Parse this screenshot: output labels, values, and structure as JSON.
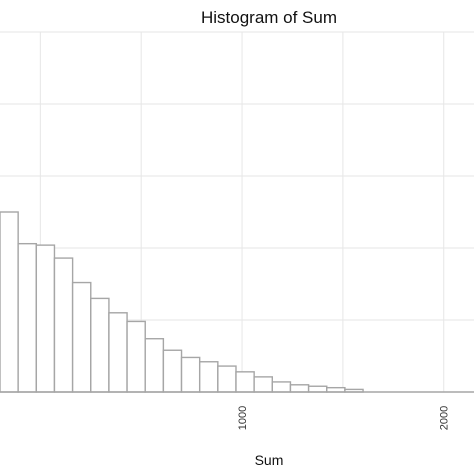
{
  "chart_data": {
    "type": "bar",
    "title": "Histogram of Sum",
    "xlabel": "Sum",
    "ylabel": "",
    "xlim": [
      -200,
      2150
    ],
    "ylim": [
      0,
      25000
    ],
    "x_ticks": [
      1000,
      2000
    ],
    "x_tick_labels": [
      "1000",
      "2000"
    ],
    "bin_width": 90,
    "bins": [
      {
        "x0": -200,
        "x1": -110,
        "value": 12500
      },
      {
        "x0": -110,
        "x1": -20,
        "value": 10300
      },
      {
        "x0": -20,
        "x1": 70,
        "value": 10200
      },
      {
        "x0": 70,
        "x1": 160,
        "value": 9300
      },
      {
        "x0": 160,
        "x1": 250,
        "value": 7600
      },
      {
        "x0": 250,
        "x1": 340,
        "value": 6500
      },
      {
        "x0": 340,
        "x1": 430,
        "value": 5500
      },
      {
        "x0": 430,
        "x1": 520,
        "value": 4900
      },
      {
        "x0": 520,
        "x1": 610,
        "value": 3700
      },
      {
        "x0": 610,
        "x1": 700,
        "value": 2900
      },
      {
        "x0": 700,
        "x1": 790,
        "value": 2400
      },
      {
        "x0": 790,
        "x1": 880,
        "value": 2100
      },
      {
        "x0": 880,
        "x1": 970,
        "value": 1800
      },
      {
        "x0": 970,
        "x1": 1060,
        "value": 1400
      },
      {
        "x0": 1060,
        "x1": 1150,
        "value": 1050
      },
      {
        "x0": 1150,
        "x1": 1240,
        "value": 700
      },
      {
        "x0": 1240,
        "x1": 1330,
        "value": 500
      },
      {
        "x0": 1330,
        "x1": 1420,
        "value": 400
      },
      {
        "x0": 1420,
        "x1": 1510,
        "value": 300
      },
      {
        "x0": 1510,
        "x1": 1600,
        "value": 180
      }
    ],
    "grid": true,
    "colors": {
      "bar_fill": "#ffffff",
      "bar_stroke": "#a6a6a6",
      "grid_major": "#e6e6e6",
      "grid_minor": "#f2f2f2",
      "baseline": "#a6a6a6"
    }
  }
}
